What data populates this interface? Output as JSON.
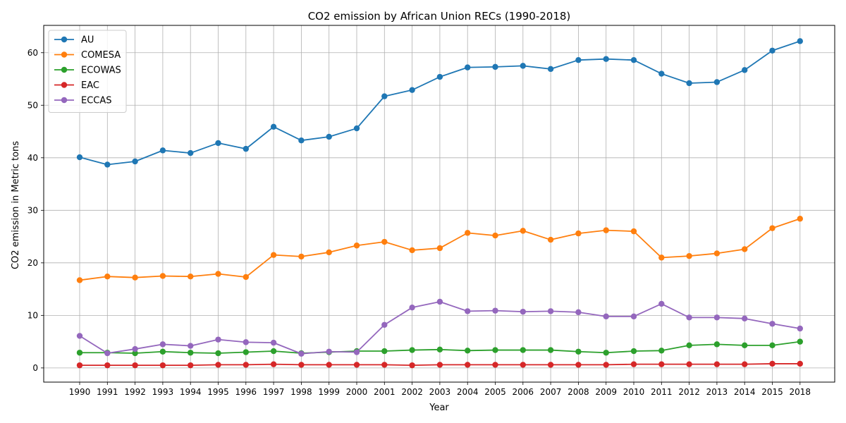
{
  "chart_data": {
    "type": "line",
    "title": "CO2 emission by African Union RECs (1990-2018)",
    "xlabel": "Year",
    "ylabel": "CO2 emission in Metric tons",
    "ylim": [
      -2.7,
      65.2
    ],
    "yticks": [
      0,
      10,
      20,
      30,
      40,
      50,
      60
    ],
    "grid": true,
    "legend_position": "top-left",
    "categories": [
      "1990",
      "1991",
      "1992",
      "1993",
      "1994",
      "1995",
      "1996",
      "1997",
      "1998",
      "1999",
      "2000",
      "2001",
      "2002",
      "2003",
      "2004",
      "2005",
      "2006",
      "2007",
      "2008",
      "2009",
      "2010",
      "2011",
      "2012",
      "2013",
      "2014",
      "2015",
      "2018"
    ],
    "series": [
      {
        "name": "AU",
        "color": "#1f77b4",
        "values": [
          40.1,
          38.7,
          39.3,
          41.4,
          40.9,
          42.8,
          41.7,
          45.9,
          43.3,
          44.0,
          45.6,
          51.7,
          52.9,
          55.4,
          57.2,
          57.3,
          57.5,
          56.9,
          58.6,
          58.8,
          58.6,
          56.0,
          54.2,
          54.4,
          56.7,
          60.4,
          62.2
        ]
      },
      {
        "name": "COMESA",
        "color": "#ff7f0e",
        "values": [
          16.7,
          17.4,
          17.2,
          17.5,
          17.4,
          17.9,
          17.3,
          21.5,
          21.2,
          22.0,
          23.3,
          24.0,
          22.4,
          22.8,
          25.7,
          25.2,
          26.1,
          24.4,
          25.6,
          26.2,
          26.0,
          21.0,
          21.3,
          21.8,
          22.6,
          26.6,
          28.4
        ]
      },
      {
        "name": "ECOWAS",
        "color": "#2ca02c",
        "values": [
          2.9,
          2.9,
          2.8,
          3.1,
          2.9,
          2.8,
          3.0,
          3.2,
          2.8,
          3.0,
          3.2,
          3.2,
          3.4,
          3.5,
          3.3,
          3.4,
          3.4,
          3.4,
          3.1,
          2.9,
          3.2,
          3.3,
          4.3,
          4.5,
          4.3,
          4.3,
          5.0
        ]
      },
      {
        "name": "EAC",
        "color": "#d62728",
        "values": [
          0.5,
          0.5,
          0.5,
          0.5,
          0.5,
          0.6,
          0.6,
          0.7,
          0.6,
          0.6,
          0.6,
          0.6,
          0.5,
          0.6,
          0.6,
          0.6,
          0.6,
          0.6,
          0.6,
          0.6,
          0.7,
          0.7,
          0.7,
          0.7,
          0.7,
          0.8,
          0.8
        ]
      },
      {
        "name": "ECCAS",
        "color": "#9467bd",
        "values": [
          6.1,
          2.8,
          3.6,
          4.5,
          4.2,
          5.4,
          4.9,
          4.8,
          2.7,
          3.1,
          3.0,
          8.2,
          11.5,
          12.6,
          10.8,
          10.9,
          10.7,
          10.8,
          10.6,
          9.8,
          9.8,
          12.2,
          9.6,
          9.6,
          9.4,
          8.4,
          7.5
        ]
      }
    ]
  }
}
